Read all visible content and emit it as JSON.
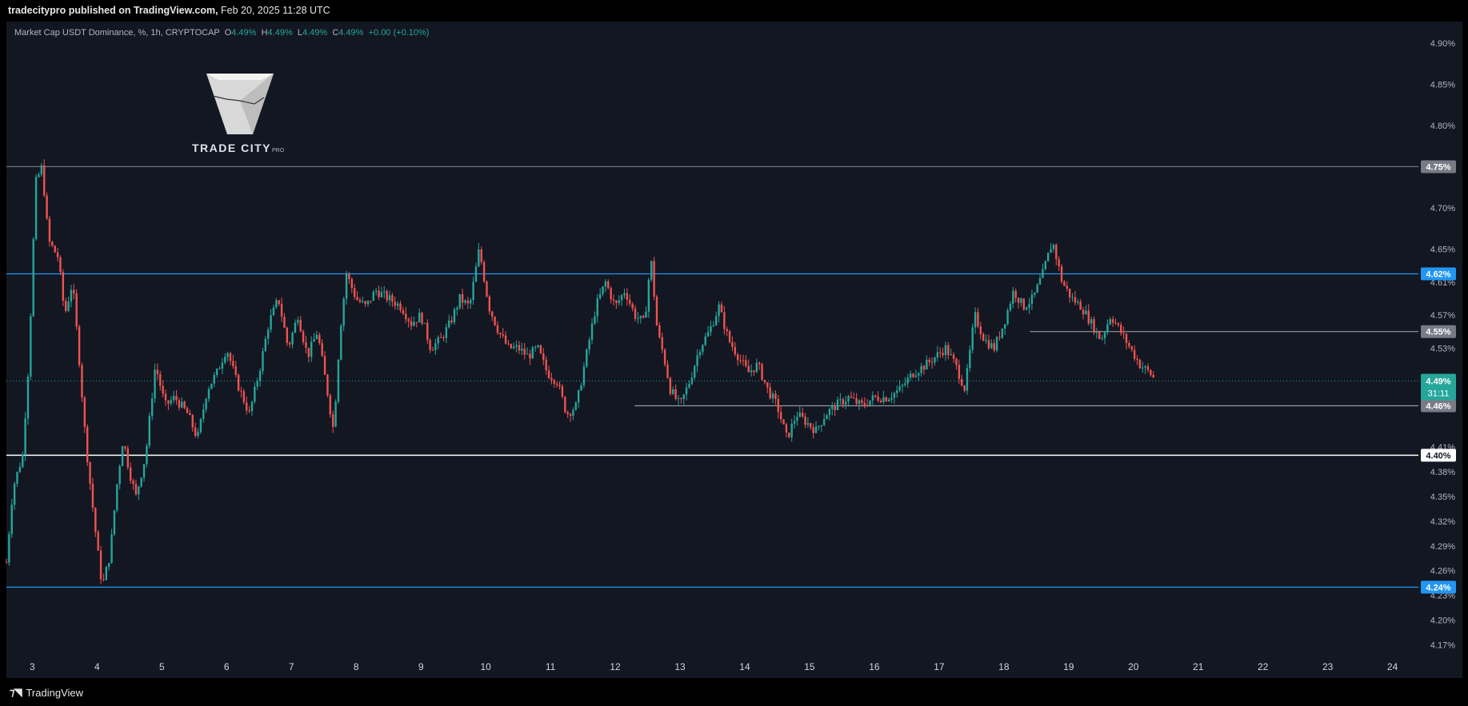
{
  "header": {
    "publisher": "tradecitypro published on TradingView.com,",
    "date": "Feb 20, 2025 11:28 UTC"
  },
  "legend": {
    "symbol": "Market Cap USDT Dominance, %, 1h, CRYPTOCAP",
    "o_label": "O",
    "o_value": "4.49%",
    "h_label": "H",
    "h_value": "4.49%",
    "l_label": "L",
    "l_value": "4.49%",
    "c_label": "C",
    "c_value": "4.49%",
    "change": "+0.00 (+0.10%)"
  },
  "watermark": {
    "brand": "TRADE CITY",
    "suffix": "PRO"
  },
  "footer": {
    "brand": "TradingView"
  },
  "colors": {
    "background": "#131722",
    "up": "#26a69a",
    "down": "#ef5350",
    "blue_line": "#2196f3",
    "white_line": "#ffffff",
    "gray_line": "#9598a1"
  },
  "chart_data": {
    "type": "candlestick",
    "symbol": "Market Cap USDT Dominance, %, 1h, CRYPTOCAP",
    "ylim": [
      4.155,
      4.925
    ],
    "y_ticks": [
      "4.90%",
      "4.85%",
      "4.80%",
      "4.75%",
      "4.70%",
      "4.65%",
      "4.61%",
      "4.57%",
      "4.53%",
      "4.49%",
      "4.46%",
      "4.41%",
      "4.38%",
      "4.35%",
      "4.32%",
      "4.29%",
      "4.26%",
      "4.23%",
      "4.20%",
      "4.17%"
    ],
    "x_ticks": [
      "3",
      "4",
      "5",
      "6",
      "7",
      "8",
      "9",
      "10",
      "11",
      "12",
      "13",
      "14",
      "15",
      "16",
      "17",
      "18",
      "19",
      "20",
      "21",
      "22",
      "23",
      "24"
    ],
    "x_range_days": [
      2.6,
      24.4
    ],
    "last_price": {
      "value": 4.49,
      "label": "4.49%",
      "countdown": "31:11"
    },
    "horizontal_levels": [
      {
        "value": 4.75,
        "label": "4.75%",
        "color": "#787b86",
        "style": "full"
      },
      {
        "value": 4.62,
        "label": "4.62%",
        "color": "#2196f3",
        "style": "full"
      },
      {
        "value": 4.55,
        "label": "4.55%",
        "color": "#9598a1",
        "style": "from-18.4"
      },
      {
        "value": 4.46,
        "label": "4.46%",
        "color": "#9598a1",
        "style": "from-12.3"
      },
      {
        "value": 4.4,
        "label": "4.40%",
        "color": "#ffffff",
        "style": "full"
      },
      {
        "value": 4.24,
        "label": "4.24%",
        "color": "#2196f3",
        "style": "full"
      }
    ],
    "price_path": [
      [
        2.6,
        4.27
      ],
      [
        2.7,
        4.36
      ],
      [
        2.85,
        4.4
      ],
      [
        2.95,
        4.52
      ],
      [
        3.05,
        4.73
      ],
      [
        3.15,
        4.75
      ],
      [
        3.25,
        4.66
      ],
      [
        3.4,
        4.64
      ],
      [
        3.5,
        4.57
      ],
      [
        3.62,
        4.61
      ],
      [
        3.72,
        4.52
      ],
      [
        3.82,
        4.42
      ],
      [
        3.9,
        4.36
      ],
      [
        4.0,
        4.29
      ],
      [
        4.08,
        4.24
      ],
      [
        4.2,
        4.28
      ],
      [
        4.3,
        4.36
      ],
      [
        4.4,
        4.42
      ],
      [
        4.5,
        4.38
      ],
      [
        4.6,
        4.35
      ],
      [
        4.75,
        4.4
      ],
      [
        4.9,
        4.51
      ],
      [
        5.05,
        4.46
      ],
      [
        5.2,
        4.47
      ],
      [
        5.4,
        4.45
      ],
      [
        5.55,
        4.42
      ],
      [
        5.7,
        4.48
      ],
      [
        5.85,
        4.5
      ],
      [
        6.0,
        4.53
      ],
      [
        6.15,
        4.49
      ],
      [
        6.35,
        4.45
      ],
      [
        6.5,
        4.5
      ],
      [
        6.65,
        4.56
      ],
      [
        6.8,
        4.59
      ],
      [
        6.95,
        4.53
      ],
      [
        7.1,
        4.57
      ],
      [
        7.25,
        4.52
      ],
      [
        7.4,
        4.55
      ],
      [
        7.55,
        4.48
      ],
      [
        7.65,
        4.43
      ],
      [
        7.75,
        4.55
      ],
      [
        7.85,
        4.62
      ],
      [
        8.0,
        4.59
      ],
      [
        8.15,
        4.58
      ],
      [
        8.3,
        4.6
      ],
      [
        8.5,
        4.59
      ],
      [
        8.7,
        4.58
      ],
      [
        8.85,
        4.56
      ],
      [
        9.0,
        4.57
      ],
      [
        9.15,
        4.53
      ],
      [
        9.3,
        4.54
      ],
      [
        9.45,
        4.56
      ],
      [
        9.6,
        4.59
      ],
      [
        9.75,
        4.58
      ],
      [
        9.9,
        4.65
      ],
      [
        10.05,
        4.58
      ],
      [
        10.2,
        4.55
      ],
      [
        10.35,
        4.53
      ],
      [
        10.5,
        4.53
      ],
      [
        10.65,
        4.52
      ],
      [
        10.8,
        4.53
      ],
      [
        10.95,
        4.5
      ],
      [
        11.1,
        4.49
      ],
      [
        11.25,
        4.45
      ],
      [
        11.4,
        4.46
      ],
      [
        11.55,
        4.52
      ],
      [
        11.7,
        4.58
      ],
      [
        11.85,
        4.61
      ],
      [
        12.0,
        4.58
      ],
      [
        12.15,
        4.6
      ],
      [
        12.3,
        4.57
      ],
      [
        12.45,
        4.56
      ],
      [
        12.55,
        4.64
      ],
      [
        12.65,
        4.55
      ],
      [
        12.75,
        4.52
      ],
      [
        12.85,
        4.48
      ],
      [
        13.0,
        4.46
      ],
      [
        13.15,
        4.49
      ],
      [
        13.3,
        4.53
      ],
      [
        13.45,
        4.55
      ],
      [
        13.6,
        4.58
      ],
      [
        13.75,
        4.54
      ],
      [
        13.9,
        4.52
      ],
      [
        14.05,
        4.5
      ],
      [
        14.2,
        4.51
      ],
      [
        14.35,
        4.48
      ],
      [
        14.5,
        4.46
      ],
      [
        14.65,
        4.42
      ],
      [
        14.8,
        4.45
      ],
      [
        14.95,
        4.44
      ],
      [
        15.1,
        4.43
      ],
      [
        15.25,
        4.45
      ],
      [
        15.4,
        4.46
      ],
      [
        15.6,
        4.47
      ],
      [
        15.8,
        4.46
      ],
      [
        16.0,
        4.47
      ],
      [
        16.2,
        4.47
      ],
      [
        16.4,
        4.48
      ],
      [
        16.6,
        4.5
      ],
      [
        16.8,
        4.51
      ],
      [
        16.95,
        4.52
      ],
      [
        17.1,
        4.53
      ],
      [
        17.25,
        4.51
      ],
      [
        17.4,
        4.48
      ],
      [
        17.55,
        4.57
      ],
      [
        17.7,
        4.54
      ],
      [
        17.85,
        4.53
      ],
      [
        18.0,
        4.56
      ],
      [
        18.15,
        4.6
      ],
      [
        18.3,
        4.58
      ],
      [
        18.45,
        4.59
      ],
      [
        18.6,
        4.62
      ],
      [
        18.75,
        4.66
      ],
      [
        18.9,
        4.61
      ],
      [
        19.05,
        4.59
      ],
      [
        19.2,
        4.58
      ],
      [
        19.35,
        4.56
      ],
      [
        19.5,
        4.54
      ],
      [
        19.65,
        4.57
      ],
      [
        19.8,
        4.55
      ],
      [
        19.95,
        4.53
      ],
      [
        20.1,
        4.51
      ],
      [
        20.25,
        4.5
      ],
      [
        20.35,
        4.49
      ]
    ]
  }
}
